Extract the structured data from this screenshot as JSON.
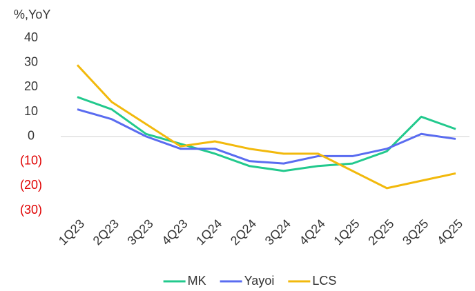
{
  "chart_data": {
    "type": "line",
    "y_label": "%,YoY",
    "categories": [
      "1Q23",
      "2Q23",
      "3Q23",
      "4Q23",
      "1Q24",
      "2Q24",
      "3Q24",
      "4Q24",
      "1Q25",
      "2Q25",
      "3Q25",
      "4Q25"
    ],
    "series": [
      {
        "name": "MK",
        "color": "#22c98d",
        "values": [
          16,
          11,
          1,
          -3,
          -7,
          -12,
          -14,
          -12,
          -11,
          -6,
          8,
          3
        ]
      },
      {
        "name": "Yayoi",
        "color": "#5a6cf0",
        "values": [
          11,
          7,
          0,
          -5,
          -5,
          -10,
          -11,
          -8,
          -8,
          -5,
          1,
          -1
        ]
      },
      {
        "name": "LCS",
        "color": "#f2b90c",
        "values": [
          29,
          14,
          5,
          -4,
          -2,
          -5,
          -7,
          -7,
          -14,
          -21,
          -18,
          -15
        ]
      }
    ],
    "ylim": [
      -30,
      40
    ],
    "yticks": [
      40,
      30,
      20,
      10,
      0,
      {
        "value": -10,
        "label": "(10)"
      },
      {
        "value": -20,
        "label": "(20)"
      },
      {
        "value": -30,
        "label": "(30)"
      }
    ],
    "negative_tick_color": "#e00000",
    "zero_line": true,
    "legend": "bottom"
  }
}
